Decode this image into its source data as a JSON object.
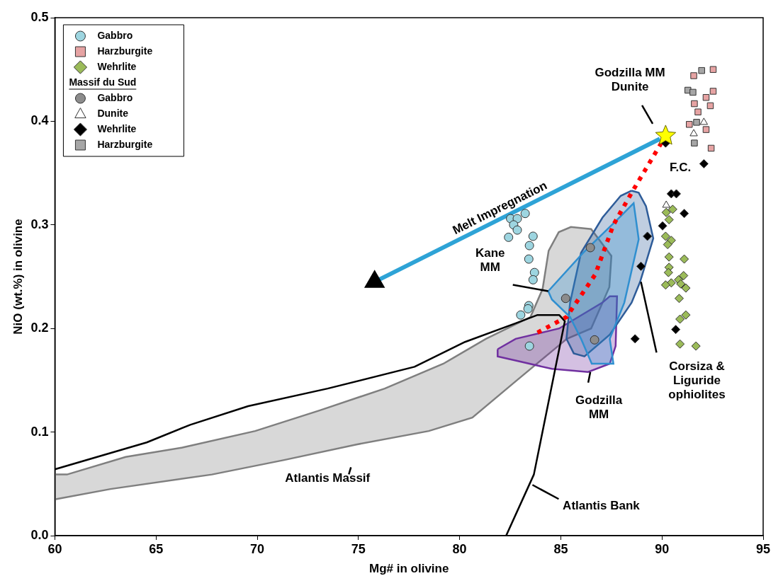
{
  "chart_data": {
    "type": "scatter",
    "xlabel": "Mg# in olivine",
    "ylabel": "NiO (wt.%) in olivine",
    "xlim": [
      60,
      95
    ],
    "xticks": [
      60,
      65,
      70,
      75,
      80,
      85,
      90,
      95
    ],
    "ylim": [
      0,
      0.5
    ],
    "yticks": [
      {
        "value": 0,
        "label": "0.0"
      },
      {
        "value": 0.1,
        "label": "0.1"
      },
      {
        "value": 0.2,
        "label": "0.2"
      },
      {
        "value": 0.3,
        "label": "0.3"
      },
      {
        "value": 0.4,
        "label": "0.4"
      },
      {
        "value": 0.5,
        "label": "0.5"
      }
    ],
    "grid": false,
    "legend": "top left",
    "legend_title": "Massif du Sud",
    "series": [
      {
        "type": "area",
        "color": "#7f7f7f",
        "x": [
          60,
          62.75,
          67.76,
          71.33,
          74.9,
          78.48,
          80.63,
          82.77,
          84.56,
          85.3,
          86.5,
          87.4,
          87.5,
          86.5,
          85.5,
          84.9,
          84.4,
          84.1,
          83.5,
          81.3,
          79.2,
          76.3,
          73.1,
          69.9,
          66.3,
          63.5,
          60.6,
          60,
          60
        ],
        "values": [
          0.035,
          0.045,
          0.059,
          0.073,
          0.088,
          0.101,
          0.114,
          0.149,
          0.178,
          0.19,
          0.2,
          0.24,
          0.27,
          0.296,
          0.298,
          0.293,
          0.275,
          0.238,
          0.211,
          0.19,
          0.166,
          0.142,
          0.121,
          0.101,
          0.085,
          0.076,
          0.059,
          0.059,
          0.035
        ]
      },
      {
        "type": "area",
        "color": "#7030a0",
        "x": [
          81.88,
          82.77,
          84.92,
          87.06,
          87.42,
          87.78,
          87.71,
          87.42,
          86.35,
          84.56,
          82.77,
          81.88,
          81.88
        ],
        "values": [
          0.18,
          0.19,
          0.2,
          0.225,
          0.231,
          0.231,
          0.183,
          0.166,
          0.158,
          0.161,
          0.169,
          0.173,
          0.18
        ]
      },
      {
        "type": "area",
        "color": "#2e5c99",
        "x": [
          88.5,
          87.96,
          87.06,
          86,
          85.46,
          85.28,
          85.64,
          86.17,
          87.42,
          88.5,
          88.92,
          89.57,
          89.21,
          88.85,
          88.5
        ],
        "values": [
          0.333,
          0.328,
          0.307,
          0.273,
          0.225,
          0.19,
          0.176,
          0.173,
          0.194,
          0.225,
          0.245,
          0.287,
          0.318,
          0.331,
          0.333
        ]
      },
      {
        "type": "area",
        "color": "#2f8fd0",
        "x": [
          84.38,
          86.1,
          87.89,
          88.6,
          88.85,
          88.14,
          87.42,
          87.6,
          86.53,
          86,
          85.46,
          84.56,
          84.38
        ],
        "values": [
          0.236,
          0.273,
          0.307,
          0.321,
          0.286,
          0.225,
          0.19,
          0.166,
          0.166,
          0.19,
          0.211,
          0.228,
          0.236
        ]
      },
      {
        "type": "line",
        "color": "#000000",
        "x": [
          60,
          64.54,
          66.69,
          69.55,
          73.48,
          77.77,
          80.27,
          82.77,
          83.85,
          84.92,
          85.2,
          83.67,
          82.3
        ],
        "values": [
          0.064,
          0.09,
          0.107,
          0.125,
          0.142,
          0.163,
          0.187,
          0.205,
          0.213,
          0.213,
          0.207,
          0.059,
          0
        ]
      },
      {
        "type": "line",
        "color": "#ff0000",
        "line_style": "dotted",
        "x": [
          83.85,
          85.28,
          86.7,
          87.6,
          88.5,
          90.18
        ],
        "values": [
          0.196,
          0.211,
          0.252,
          0.3,
          0.331,
          0.386
        ]
      },
      {
        "type": "line",
        "color": "#2ea3d6",
        "marker": "triangle",
        "x": [
          89.9,
          75.8
        ],
        "values": [
          0.383,
          0.245
        ]
      },
      {
        "type": "scatter",
        "name": "Gabbro",
        "color": "#9dd5e0",
        "marker": "circle",
        "x": [
          82.52,
          83.24,
          82.85,
          82.67,
          82.85,
          82.42,
          83.63,
          83.45,
          83.42,
          83.7,
          83.63,
          83.42,
          83.38,
          83.02,
          83.45
        ],
        "values": [
          0.306,
          0.311,
          0.306,
          0.3,
          0.295,
          0.288,
          0.289,
          0.28,
          0.267,
          0.254,
          0.247,
          0.222,
          0.219,
          0.213,
          0.183
        ]
      },
      {
        "type": "scatter",
        "name": "Harzburgite",
        "color": "#e6a3a3",
        "marker": "square",
        "x": [
          92.53,
          91.57,
          92.53,
          92.18,
          91.6,
          92.39,
          91.78,
          91.35,
          92.18,
          92.43
        ],
        "values": [
          0.45,
          0.444,
          0.429,
          0.423,
          0.417,
          0.415,
          0.409,
          0.397,
          0.392,
          0.374
        ]
      },
      {
        "type": "scatter",
        "name": "Wehrlite",
        "color": "#9bbb59",
        "marker": "diamond",
        "x": [
          90.53,
          90.21,
          90.35,
          90.18,
          90.46,
          90.28,
          90.35,
          91.1,
          90.35,
          90.32,
          91.07,
          90.82,
          90.46,
          90.18,
          90.93,
          91.18,
          90.85,
          91.18,
          90.89,
          90.89,
          91.68
        ],
        "values": [
          0.315,
          0.312,
          0.305,
          0.289,
          0.285,
          0.281,
          0.269,
          0.267,
          0.259,
          0.254,
          0.251,
          0.247,
          0.244,
          0.242,
          0.243,
          0.239,
          0.229,
          0.213,
          0.209,
          0.185,
          0.183
        ]
      },
      {
        "type": "scatter",
        "name": "Gabbro",
        "color": "#8c8c8c",
        "marker": "circle",
        "x": [
          86.46,
          85.24,
          86.67
        ],
        "values": [
          0.278,
          0.229,
          0.189
        ]
      },
      {
        "type": "scatter",
        "name": "Dunite",
        "color": "#ffffff",
        "marker": "triangle",
        "x": [
          92.07,
          91.57,
          90.21
        ],
        "values": [
          0.399,
          0.388,
          0.319
        ]
      },
      {
        "type": "scatter",
        "name": "Wehrlite",
        "color": "#000000",
        "marker": "diamond",
        "x": [
          90.18,
          92.07,
          90.46,
          90.71,
          91.1,
          90.03,
          89.28,
          88.96,
          90.68,
          88.67
        ],
        "values": [
          0.379,
          0.359,
          0.33,
          0.33,
          0.311,
          0.299,
          0.289,
          0.26,
          0.199,
          0.19
        ]
      },
      {
        "type": "scatter",
        "name": "Harzburgite",
        "color": "#a6a6a6",
        "marker": "square",
        "x": [
          91.96,
          91.28,
          91.53,
          91.71,
          91.6
        ],
        "values": [
          0.449,
          0.43,
          0.428,
          0.399,
          0.379
        ]
      },
      {
        "type": "scatter",
        "color": "#ffff00",
        "marker": "star",
        "x": [
          90.18
        ],
        "values": [
          0.386
        ]
      }
    ],
    "annotations": [
      {
        "text": "Melt Impregnation",
        "x": 82,
        "y": 0.305
      },
      "Godzilla MM Dunite",
      "F.C.",
      {
        "text": "Kane MM",
        "x": 84.38,
        "y": 0.236
      },
      {
        "text": "Corsiza & Liguride ophiolites",
        "x": 88.96,
        "y": 0.245
      },
      {
        "text": "Godzilla MM",
        "x": 86.46,
        "y": 0.158
      },
      "Atlantis Massif",
      {
        "text": "Atlantis Bank",
        "x": 83.6,
        "y": 0.049
      }
    ]
  }
}
